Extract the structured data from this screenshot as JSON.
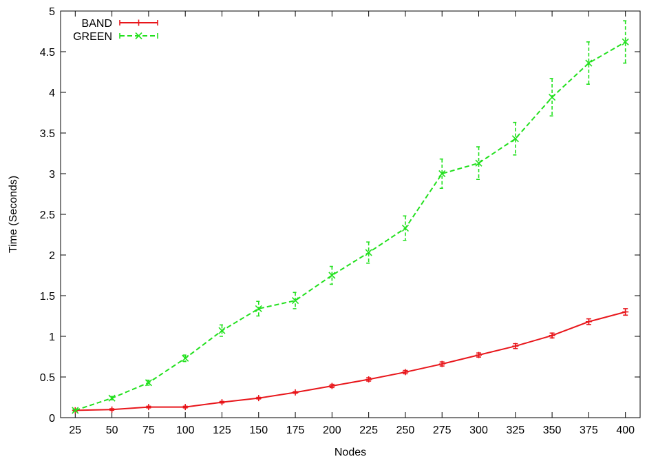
{
  "chart_data": {
    "type": "line",
    "title": "",
    "xlabel": "Nodes",
    "ylabel": "Time (Seconds)",
    "x": [
      25,
      50,
      75,
      100,
      125,
      150,
      175,
      200,
      225,
      250,
      275,
      300,
      325,
      350,
      375,
      400
    ],
    "xlim": [
      15,
      410
    ],
    "ylim": [
      0,
      5
    ],
    "xticks": [
      "25",
      "50",
      "75",
      "100",
      "125",
      "150",
      "175",
      "200",
      "225",
      "250",
      "275",
      "300",
      "325",
      "350",
      "375",
      "400"
    ],
    "yticks": [
      "0",
      "0.5",
      "1",
      "1.5",
      "2",
      "2.5",
      "3",
      "3.5",
      "4",
      "4.5",
      "5"
    ],
    "grid": false,
    "legend_position": "top-left",
    "error_bars": true,
    "series": [
      {
        "name": "BAND",
        "color": "#e8161b",
        "dash": "solid",
        "marker": "plus",
        "values": [
          0.09,
          0.1,
          0.13,
          0.13,
          0.19,
          0.24,
          0.31,
          0.39,
          0.47,
          0.56,
          0.66,
          0.77,
          0.88,
          1.01,
          1.18,
          1.3
        ],
        "errors": [
          0.01,
          0.01,
          0.01,
          0.01,
          0.01,
          0.01,
          0.01,
          0.02,
          0.02,
          0.02,
          0.025,
          0.025,
          0.03,
          0.03,
          0.035,
          0.04
        ]
      },
      {
        "name": "GREEN",
        "color": "#22e01e",
        "dash": "dashed",
        "marker": "cross",
        "values": [
          0.09,
          0.24,
          0.43,
          0.73,
          1.07,
          1.34,
          1.44,
          1.75,
          2.03,
          2.33,
          3.0,
          3.13,
          3.43,
          3.94,
          4.36,
          4.62
        ],
        "errors": [
          0.01,
          0.02,
          0.03,
          0.04,
          0.07,
          0.09,
          0.1,
          0.11,
          0.13,
          0.15,
          0.18,
          0.2,
          0.2,
          0.23,
          0.26,
          0.26
        ]
      }
    ]
  }
}
